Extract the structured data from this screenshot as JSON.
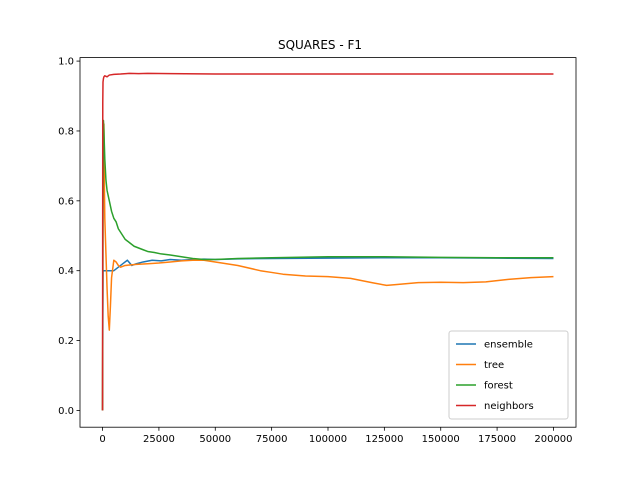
{
  "chart_data": {
    "type": "line",
    "title": "SQUARES - F1",
    "xlabel": "",
    "ylabel": "",
    "xlim": [
      -10000,
      210000
    ],
    "ylim": [
      -0.048,
      1.01
    ],
    "xticks": [
      0,
      25000,
      50000,
      75000,
      100000,
      125000,
      150000,
      175000,
      200000
    ],
    "xtick_labels": [
      "0",
      "25000",
      "50000",
      "75000",
      "100000",
      "125000",
      "150000",
      "175000",
      "200000"
    ],
    "yticks": [
      0.0,
      0.2,
      0.4,
      0.6,
      0.8,
      1.0
    ],
    "ytick_labels": [
      "0.0",
      "0.2",
      "0.4",
      "0.6",
      "0.8",
      "1.0"
    ],
    "grid": false,
    "legend_position": "lower-right",
    "series": [
      {
        "name": "ensemble",
        "color": "#1f77b4",
        "x": [
          0,
          200,
          400,
          600,
          800,
          1000,
          1500,
          3000,
          5000,
          7000,
          9000,
          11000,
          13000,
          15000,
          18000,
          22000,
          26000,
          30000,
          35000,
          40000,
          45000,
          50000,
          60000,
          75000,
          100000,
          125000,
          150000,
          175000,
          200000
        ],
        "y": [
          0.0,
          0.4,
          0.4,
          0.4,
          0.4,
          0.4,
          0.4,
          0.4,
          0.4,
          0.41,
          0.42,
          0.43,
          0.415,
          0.42,
          0.425,
          0.43,
          0.428,
          0.432,
          0.43,
          0.432,
          0.433,
          0.432,
          0.434,
          0.435,
          0.436,
          0.437,
          0.437,
          0.436,
          0.435
        ]
      },
      {
        "name": "tree",
        "color": "#ff7f0e",
        "x": [
          0,
          200,
          400,
          600,
          800,
          1000,
          1500,
          2000,
          2500,
          3000,
          3500,
          4000,
          5000,
          6000,
          7000,
          8000,
          10000,
          15000,
          20000,
          25000,
          30000,
          35000,
          40000,
          45000,
          50000,
          60000,
          70000,
          75000,
          80000,
          90000,
          100000,
          110000,
          120000,
          126000,
          130000,
          140000,
          150000,
          160000,
          170000,
          180000,
          190000,
          200000
        ],
        "y": [
          0.0,
          0.62,
          0.8,
          0.82,
          0.65,
          0.55,
          0.45,
          0.35,
          0.27,
          0.23,
          0.3,
          0.38,
          0.43,
          0.425,
          0.415,
          0.41,
          0.415,
          0.418,
          0.42,
          0.422,
          0.425,
          0.428,
          0.43,
          0.43,
          0.425,
          0.415,
          0.4,
          0.395,
          0.39,
          0.385,
          0.383,
          0.378,
          0.365,
          0.358,
          0.36,
          0.366,
          0.367,
          0.366,
          0.368,
          0.375,
          0.38,
          0.383
        ]
      },
      {
        "name": "forest",
        "color": "#2ca02c",
        "x": [
          0,
          200,
          400,
          600,
          800,
          1000,
          1500,
          2000,
          3000,
          4000,
          5000,
          6000,
          7000,
          8000,
          9000,
          10000,
          12000,
          14000,
          16000,
          18000,
          20000,
          23000,
          26000,
          30000,
          35000,
          40000,
          45000,
          50000,
          60000,
          75000,
          100000,
          125000,
          150000,
          175000,
          200000
        ],
        "y": [
          0.0,
          0.6,
          0.83,
          0.8,
          0.76,
          0.72,
          0.66,
          0.63,
          0.6,
          0.57,
          0.55,
          0.54,
          0.52,
          0.51,
          0.5,
          0.49,
          0.48,
          0.47,
          0.465,
          0.46,
          0.455,
          0.452,
          0.448,
          0.445,
          0.44,
          0.435,
          0.432,
          0.432,
          0.435,
          0.437,
          0.44,
          0.44,
          0.438,
          0.437,
          0.437
        ]
      },
      {
        "name": "neighbors",
        "color": "#d62728",
        "x": [
          0,
          100,
          200,
          400,
          600,
          1000,
          2000,
          3000,
          5000,
          8000,
          12000,
          16000,
          20000,
          30000,
          50000,
          75000,
          100000,
          125000,
          150000,
          175000,
          200000
        ],
        "y": [
          0.0,
          0.88,
          0.94,
          0.95,
          0.955,
          0.958,
          0.955,
          0.96,
          0.962,
          0.963,
          0.965,
          0.964,
          0.965,
          0.964,
          0.963,
          0.963,
          0.963,
          0.963,
          0.963,
          0.963,
          0.963
        ]
      }
    ]
  }
}
